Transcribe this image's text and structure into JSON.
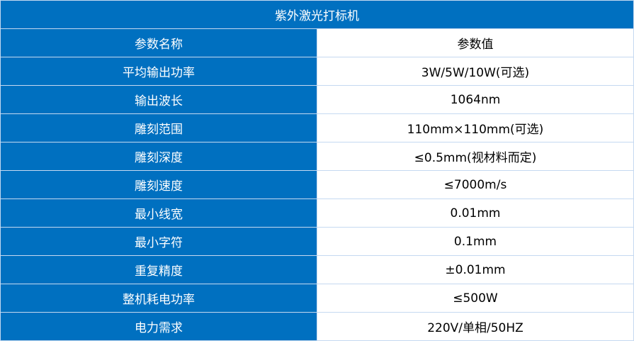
{
  "title": "紫外激光打标机",
  "header": {
    "name": "参数名称",
    "value": "参数值"
  },
  "rows": [
    {
      "name": "平均输出功率",
      "value": "3W/5W/10W(可选)"
    },
    {
      "name": "输出波长",
      "value": "1064nm"
    },
    {
      "name": "雕刻范围",
      "value": "110mm×110mm(可选)"
    },
    {
      "name": "雕刻深度",
      "value": "≤0.5mm(视材料而定)"
    },
    {
      "name": "雕刻速度",
      "value": "≤7000m/s"
    },
    {
      "name": "最小线宽",
      "value": "0.01mm"
    },
    {
      "name": "最小字符",
      "value": "0.1mm"
    },
    {
      "name": "重复精度",
      "value": "±0.01mm"
    },
    {
      "name": "整机耗电功率",
      "value": "≤500W"
    },
    {
      "name": "电力需求",
      "value": "220V/单相/50HZ"
    }
  ],
  "colors": {
    "header_bg": "#0070c0",
    "border": "#c5d9f1"
  }
}
